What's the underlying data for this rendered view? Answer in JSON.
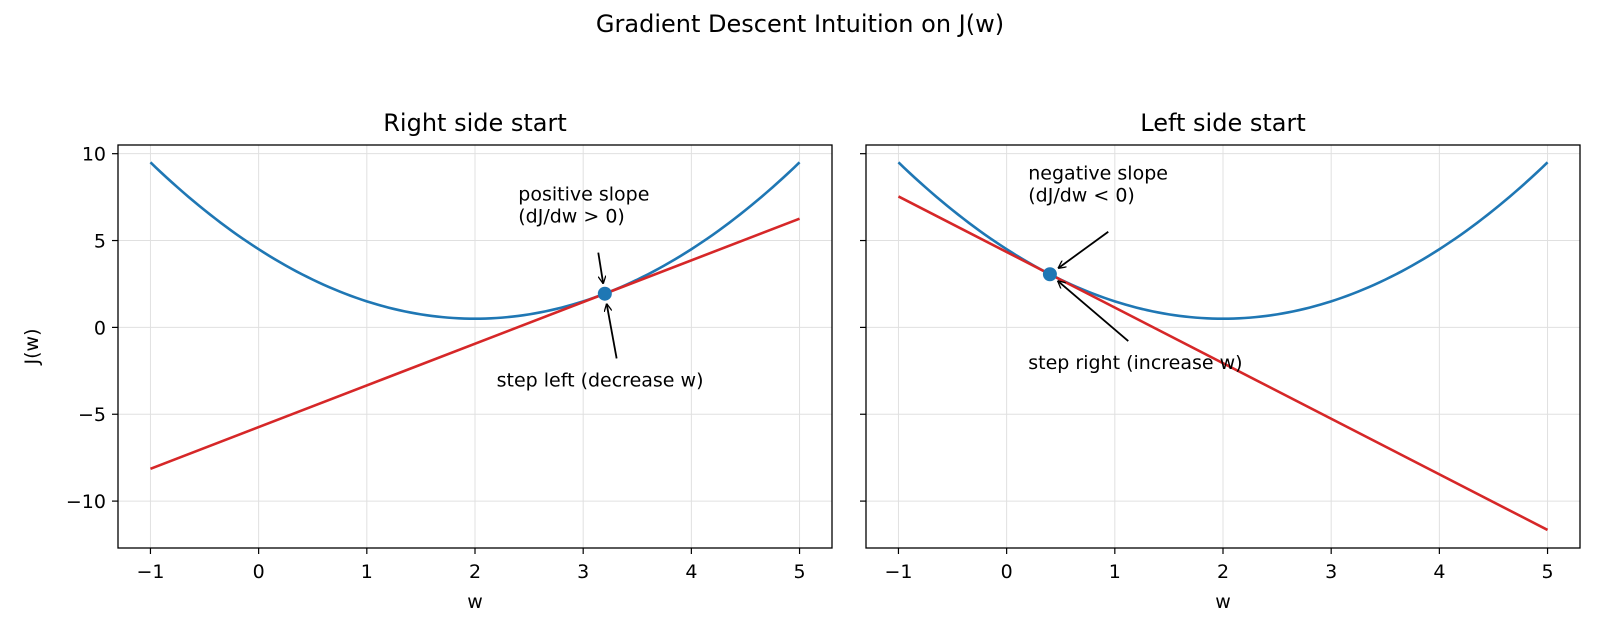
{
  "figure": {
    "suptitle": "Gradient Descent Intuition on J(w)"
  },
  "colors": {
    "curve": "#1f77b4",
    "tangent": "#d62728",
    "point": "#1f77b4",
    "grid": "#e0e0e0",
    "arrow": "#000000"
  },
  "chart_data": [
    {
      "type": "line",
      "title": "Right side start",
      "xlabel": "w",
      "ylabel": "J(w)",
      "xlim": [
        -1.3,
        5.3
      ],
      "ylim": [
        -12.7,
        10.5
      ],
      "xticks": [
        -1,
        0,
        1,
        2,
        3,
        4,
        5
      ],
      "xtick_labels": [
        "−1",
        "0",
        "1",
        "2",
        "3",
        "4",
        "5"
      ],
      "yticks": [
        10,
        5,
        0,
        -5,
        -10
      ],
      "ytick_labels": [
        "10",
        "5",
        "0",
        "−5",
        "−10"
      ],
      "grid": true,
      "function": "J(w) = (w - 2)^2 + 0.5",
      "curve": {
        "x": [
          -1,
          -0.5,
          0,
          0.5,
          1,
          1.5,
          2,
          2.5,
          3,
          3.5,
          4,
          4.5,
          5
        ],
        "y": [
          9.5,
          6.75,
          4.5,
          2.75,
          1.5,
          0.75,
          0.5,
          0.75,
          1.5,
          2.75,
          4.5,
          6.75,
          9.5
        ]
      },
      "point": {
        "x": 3.2,
        "y": 1.94
      },
      "slope": 2.4,
      "tangent": {
        "x": [
          -1,
          5
        ],
        "y": [
          -8.14,
          6.26
        ]
      },
      "annotations": [
        {
          "lines": [
            "positive slope",
            "(dJ/dw > 0)"
          ],
          "text_x": 2.4,
          "text_y": 7.3,
          "target_x": 3.2,
          "target_y": 1.94
        },
        {
          "lines": [
            "step left (decrease w)"
          ],
          "text_x": 2.2,
          "text_y": -3.4,
          "target_x": 3.2,
          "target_y": 1.94
        }
      ]
    },
    {
      "type": "line",
      "title": "Left side start",
      "xlabel": "w",
      "ylabel": "",
      "xlim": [
        -1.3,
        5.3
      ],
      "ylim": [
        -12.7,
        10.5
      ],
      "xticks": [
        -1,
        0,
        1,
        2,
        3,
        4,
        5
      ],
      "xtick_labels": [
        "−1",
        "0",
        "1",
        "2",
        "3",
        "4",
        "5"
      ],
      "yticks": [
        10,
        5,
        0,
        -5,
        -10
      ],
      "ytick_labels": [],
      "grid": true,
      "function": "J(w) = (w - 2)^2 + 0.5",
      "curve": {
        "x": [
          -1,
          -0.5,
          0,
          0.5,
          1,
          1.5,
          2,
          2.5,
          3,
          3.5,
          4,
          4.5,
          5
        ],
        "y": [
          9.5,
          6.75,
          4.5,
          2.75,
          1.5,
          0.75,
          0.5,
          0.75,
          1.5,
          2.75,
          4.5,
          6.75,
          9.5
        ]
      },
      "point": {
        "x": 0.4,
        "y": 3.06
      },
      "slope": -3.2,
      "tangent": {
        "x": [
          -1,
          5
        ],
        "y": [
          7.54,
          -11.66
        ]
      },
      "annotations": [
        {
          "lines": [
            "negative slope",
            "(dJ/dw < 0)"
          ],
          "text_x": 0.2,
          "text_y": 8.5,
          "target_x": 0.4,
          "target_y": 3.06
        },
        {
          "lines": [
            "step right (increase w)"
          ],
          "text_x": 0.2,
          "text_y": -2.4,
          "target_x": 0.4,
          "target_y": 3.06
        }
      ]
    }
  ]
}
